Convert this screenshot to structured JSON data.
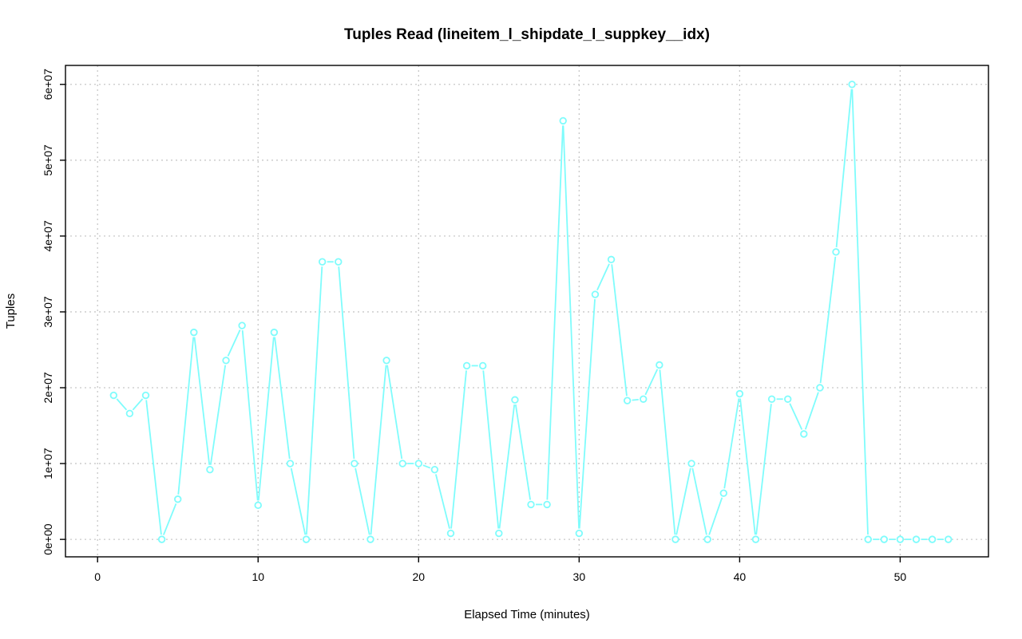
{
  "chart_data": {
    "type": "line",
    "title": "Tuples Read (lineitem_l_shipdate_l_suppkey__idx)",
    "xlabel": "Elapsed Time (minutes)",
    "ylabel": "Tuples",
    "xlim": [
      -2,
      55.5
    ],
    "ylim": [
      -2300000,
      62500000
    ],
    "xticks": [
      0,
      10,
      20,
      30,
      40,
      50
    ],
    "xtick_labels": [
      "0",
      "10",
      "20",
      "30",
      "40",
      "50"
    ],
    "yticks": [
      0,
      10000000,
      20000000,
      30000000,
      40000000,
      50000000,
      60000000
    ],
    "ytick_labels": [
      "0e+00",
      "1e+07",
      "2e+07",
      "3e+07",
      "4e+07",
      "5e+07",
      "6e+07"
    ],
    "grid": true,
    "series": [
      {
        "color": "#7ffcfc",
        "marker": "circle",
        "x": [
          1,
          2,
          3,
          4,
          5,
          6,
          7,
          8,
          9,
          10,
          11,
          12,
          13,
          14,
          15,
          16,
          17,
          18,
          19,
          20,
          21,
          22,
          23,
          24,
          25,
          26,
          27,
          28,
          29,
          30,
          31,
          32,
          33,
          34,
          35,
          36,
          37,
          38,
          39,
          40,
          41,
          42,
          43,
          44,
          45,
          46,
          47,
          48,
          49,
          50,
          51,
          52,
          53
        ],
        "y": [
          19000000,
          16600000,
          19000000,
          0,
          5300000,
          27300000,
          9200000,
          23600000,
          28200000,
          4500000,
          27300000,
          10000000,
          0,
          36600000,
          36600000,
          10000000,
          0,
          23600000,
          10000000,
          10000000,
          9200000,
          800000,
          22900000,
          22900000,
          800000,
          18400000,
          4600000,
          4600000,
          55200000,
          800000,
          32300000,
          36900000,
          18300000,
          18500000,
          23000000,
          0,
          10000000,
          0,
          6100000,
          19200000,
          0,
          18500000,
          18500000,
          13900000,
          20000000,
          37900000,
          60000000,
          0,
          0,
          0,
          0,
          0,
          0
        ]
      }
    ]
  }
}
